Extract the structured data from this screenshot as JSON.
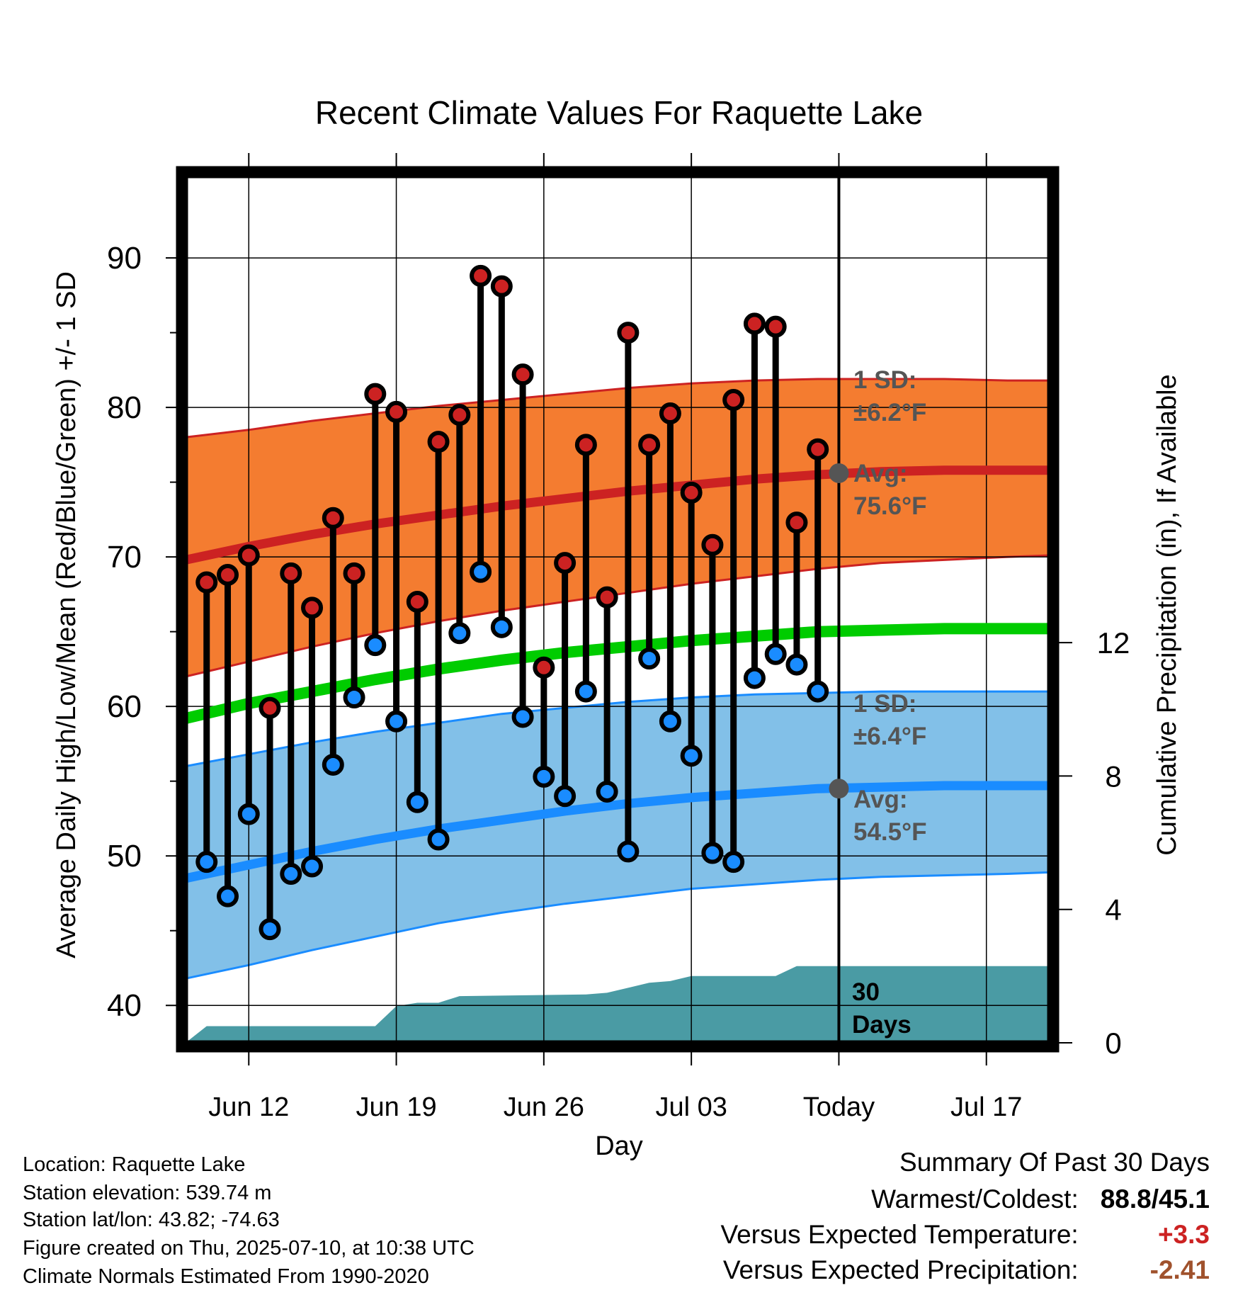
{
  "title": "Recent Climate Values For Raquette Lake",
  "ylabel_left": "Average Daily High/Low/Mean (Red/Blue/Green) +/- 1 SD",
  "ylabel_right": "Cumulative Precipitation (in), If Available",
  "xlabel": "Day",
  "chart_data": {
    "type": "line",
    "title": "Recent Climate Values For Raquette Lake",
    "xlabel": "Day",
    "ylabel": "Average Daily High/Low/Mean (Red/Blue/Green) +/- 1 SD",
    "y2label": "Cumulative Precipitation (in), If Available",
    "xlim": [
      "2025-06-09",
      "2025-07-20"
    ],
    "ylim": [
      37.5,
      95.5
    ],
    "y2lim": [
      0,
      26
    ],
    "x_ticks": [
      {
        "date": "2025-06-12",
        "label": "Jun 12"
      },
      {
        "date": "2025-06-19",
        "label": "Jun 19"
      },
      {
        "date": "2025-06-26",
        "label": "Jun 26"
      },
      {
        "date": "2025-07-03",
        "label": "Jul 03"
      },
      {
        "date": "2025-07-10",
        "label": "Today"
      },
      {
        "date": "2025-07-17",
        "label": "Jul 17"
      }
    ],
    "y_ticks": [
      40,
      50,
      60,
      70,
      80,
      90
    ],
    "y2_ticks": [
      0,
      4,
      8,
      12
    ],
    "today": "2025-07-10",
    "observed": {
      "dates": [
        "2025-06-10",
        "2025-06-11",
        "2025-06-12",
        "2025-06-13",
        "2025-06-14",
        "2025-06-15",
        "2025-06-16",
        "2025-06-17",
        "2025-06-18",
        "2025-06-19",
        "2025-06-20",
        "2025-06-21",
        "2025-06-22",
        "2025-06-23",
        "2025-06-24",
        "2025-06-25",
        "2025-06-26",
        "2025-06-27",
        "2025-06-28",
        "2025-06-29",
        "2025-06-30",
        "2025-07-01",
        "2025-07-02",
        "2025-07-03",
        "2025-07-04",
        "2025-07-05",
        "2025-07-06",
        "2025-07-07",
        "2025-07-08",
        "2025-07-09"
      ],
      "highs": [
        68.3,
        68.8,
        70.1,
        59.9,
        68.9,
        66.6,
        72.6,
        68.9,
        80.9,
        79.7,
        67.0,
        77.7,
        79.5,
        88.8,
        88.1,
        82.2,
        62.6,
        69.6,
        77.5,
        67.3,
        85.0,
        77.5,
        79.6,
        74.3,
        70.8,
        80.5,
        85.6,
        85.4,
        72.3,
        77.2
      ],
      "lows": [
        49.6,
        47.3,
        52.8,
        45.1,
        48.8,
        49.3,
        56.1,
        60.6,
        64.1,
        59.0,
        53.6,
        51.1,
        64.9,
        69.0,
        65.3,
        59.3,
        55.3,
        54.0,
        61.0,
        54.3,
        50.3,
        63.2,
        59.0,
        56.7,
        50.2,
        49.6,
        61.9,
        63.5,
        62.8,
        61.0
      ]
    },
    "normals": {
      "dates": [
        "2025-06-09",
        "2025-06-12",
        "2025-06-15",
        "2025-06-18",
        "2025-06-21",
        "2025-06-24",
        "2025-06-27",
        "2025-06-30",
        "2025-07-03",
        "2025-07-06",
        "2025-07-09",
        "2025-07-12",
        "2025-07-15",
        "2025-07-18",
        "2025-07-20"
      ],
      "high_mean": [
        69.8,
        70.7,
        71.5,
        72.2,
        72.8,
        73.4,
        73.9,
        74.4,
        74.8,
        75.2,
        75.5,
        75.7,
        75.8,
        75.8,
        75.8
      ],
      "high_upper": [
        78.0,
        78.5,
        79.1,
        79.6,
        80.1,
        80.5,
        80.9,
        81.3,
        81.6,
        81.8,
        81.9,
        81.9,
        81.9,
        81.8,
        81.8
      ],
      "high_lower": [
        62.0,
        63.0,
        64.0,
        64.9,
        65.7,
        66.4,
        67.0,
        67.6,
        68.2,
        68.7,
        69.2,
        69.6,
        69.8,
        70.0,
        70.1
      ],
      "mean": [
        59.2,
        60.2,
        61.0,
        61.8,
        62.5,
        63.1,
        63.6,
        64.0,
        64.4,
        64.7,
        65.0,
        65.1,
        65.2,
        65.2,
        65.2
      ],
      "low_mean": [
        48.5,
        49.4,
        50.3,
        51.1,
        51.8,
        52.4,
        53.0,
        53.5,
        53.9,
        54.2,
        54.5,
        54.6,
        54.7,
        54.7,
        54.7
      ],
      "low_upper": [
        56.0,
        56.8,
        57.6,
        58.3,
        58.9,
        59.5,
        59.9,
        60.3,
        60.6,
        60.8,
        60.9,
        61.0,
        61.0,
        61.0,
        61.0
      ],
      "low_lower": [
        41.8,
        42.7,
        43.7,
        44.6,
        45.5,
        46.2,
        46.8,
        47.3,
        47.8,
        48.1,
        48.4,
        48.6,
        48.7,
        48.8,
        48.9
      ]
    },
    "precip_cumulative": {
      "dates": [
        "2025-06-09",
        "2025-06-10",
        "2025-06-18",
        "2025-06-19",
        "2025-06-20",
        "2025-06-21",
        "2025-06-22",
        "2025-06-28",
        "2025-06-29",
        "2025-07-01",
        "2025-07-02",
        "2025-07-03",
        "2025-07-07",
        "2025-07-08",
        "2025-07-20"
      ],
      "values": [
        0.0,
        0.5,
        0.5,
        1.1,
        1.2,
        1.2,
        1.4,
        1.45,
        1.5,
        1.8,
        1.85,
        2.0,
        2.0,
        2.3,
        2.3
      ]
    },
    "annotations": [
      {
        "label": "1 SD:",
        "value": "±6.2°F"
      },
      {
        "label": "Avg:",
        "value": "75.6°F"
      },
      {
        "label": "1 SD:",
        "value": "±6.4°F"
      },
      {
        "label": "Avg:",
        "value": "54.5°F"
      },
      {
        "label": "30",
        "value": "Days"
      }
    ],
    "colors": {
      "high_band": "#f47c30",
      "high_line": "#cc2222",
      "mean_line": "#00cc00",
      "low_band": "#82c0e8",
      "low_line": "#1a8cff",
      "precip": "#4a9ba4",
      "high_dot": "#cc2222",
      "low_dot": "#1a8cff",
      "annotation": "#555555"
    }
  },
  "info": {
    "location": "Location: Raquette Lake",
    "elevation": "Station elevation: 539.74 m",
    "latlon": "Station lat/lon: 43.82; -74.63",
    "created": "Figure created on Thu, 2025-07-10, at 10:38 UTC",
    "normals": "Climate Normals Estimated From 1990-2020"
  },
  "summary": {
    "title": "Summary Of Past 30 Days",
    "warmest_coldest_label": "Warmest/Coldest:",
    "warmest_coldest_value": "88.8/45.1",
    "temp_label": "Versus Expected Temperature:",
    "temp_value": "+3.3",
    "precip_label": "Versus Expected Precipitation:",
    "precip_value": "-2.41"
  }
}
